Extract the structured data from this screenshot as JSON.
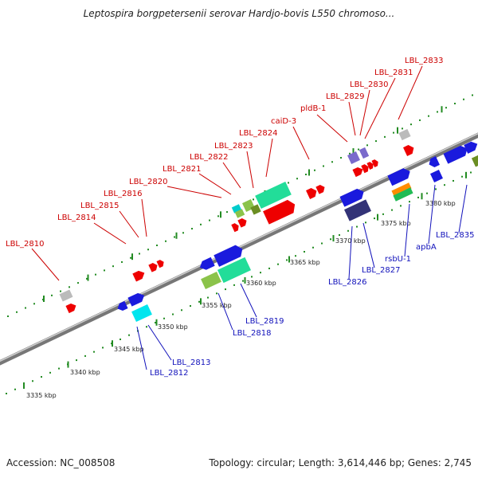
{
  "header": {
    "title": "Leptospira borgpetersenii serovar Hardjo-bovis L550 chromoso..."
  },
  "footer": {
    "accession": "Accession: NC_008508",
    "summary": "Topology: circular; Length: 3,614,446 bp; Genes: 2,745"
  },
  "colors": {
    "backbone": "#8a8a8a",
    "dots": "#228b22",
    "forward_label": "#cc0000",
    "reverse_label": "#1111bb",
    "leader_forward": "#cc0000",
    "leader_reverse": "#1111bb"
  },
  "axis_ticks": [
    {
      "kbp": 3335,
      "label": "3335 kbp"
    },
    {
      "kbp": 3340,
      "label": "3340 kbp"
    },
    {
      "kbp": 3345,
      "label": "3345 kbp"
    },
    {
      "kbp": 3350,
      "label": "3350 kbp"
    },
    {
      "kbp": 3355,
      "label": "3355 kbp"
    },
    {
      "kbp": 3360,
      "label": "3360 kbp"
    },
    {
      "kbp": 3365,
      "label": "3365 kbp"
    },
    {
      "kbp": 3370,
      "label": "3370 kbp"
    },
    {
      "kbp": 3375,
      "label": "3375 kbp"
    },
    {
      "kbp": 3380,
      "label": "3380 kbp"
    }
  ],
  "forward_labels": [
    "LBL_2810",
    "LBL_2814",
    "LBL_2815",
    "LBL_2816",
    "LBL_2820",
    "LBL_2821",
    "LBL_2822",
    "LBL_2823",
    "LBL_2824",
    "caiD-3",
    "pldB-1",
    "LBL_2829",
    "LBL_2830",
    "LBL_2831",
    "LBL_2833"
  ],
  "reverse_labels": [
    "LBL_2812",
    "LBL_2813",
    "LBL_2818",
    "LBL_2819",
    "LBL_2826",
    "LBL_2827",
    "rsbU-1",
    "apbA",
    "LBL_2835"
  ]
}
